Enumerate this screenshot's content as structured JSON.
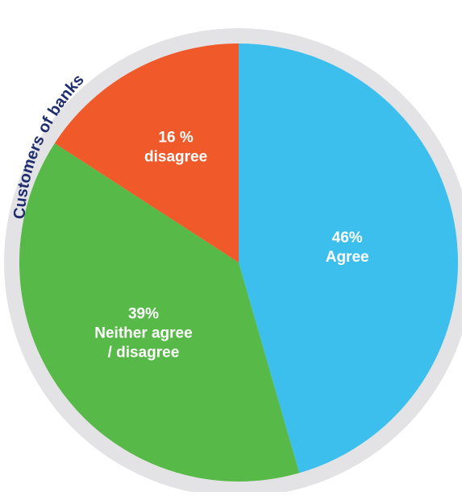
{
  "chart_data": {
    "type": "pie",
    "title": "Customers of banks",
    "slices": [
      {
        "key": "agree",
        "label_lines": [
          "46%",
          "Agree"
        ],
        "value": 46,
        "color": "#3dbfed"
      },
      {
        "key": "neither",
        "label_lines": [
          "39%",
          "Neither agree",
          "/ disagree"
        ],
        "value": 39,
        "color": "#57b947"
      },
      {
        "key": "disagree",
        "label_lines": [
          "16 %",
          "disagree"
        ],
        "value": 16,
        "color": "#f05a2a"
      }
    ],
    "ring_color": "#e3e3e5",
    "title_color": "#1f2d6e",
    "legend": "none"
  }
}
